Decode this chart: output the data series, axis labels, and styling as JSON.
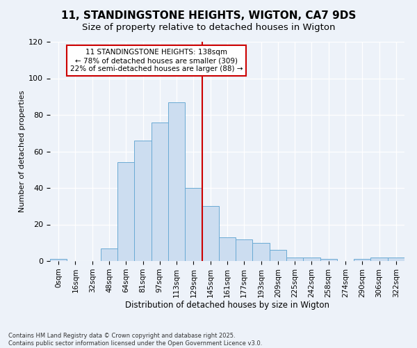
{
  "title": "11, STANDINGSTONE HEIGHTS, WIGTON, CA7 9DS",
  "subtitle": "Size of property relative to detached houses in Wigton",
  "xlabel": "Distribution of detached houses by size in Wigton",
  "ylabel": "Number of detached properties",
  "footer": "Contains HM Land Registry data © Crown copyright and database right 2025.\nContains public sector information licensed under the Open Government Licence v3.0.",
  "bar_labels": [
    "0sqm",
    "16sqm",
    "32sqm",
    "48sqm",
    "64sqm",
    "81sqm",
    "97sqm",
    "113sqm",
    "129sqm",
    "145sqm",
    "161sqm",
    "177sqm",
    "193sqm",
    "209sqm",
    "225sqm",
    "242sqm",
    "258sqm",
    "274sqm",
    "290sqm",
    "306sqm",
    "322sqm"
  ],
  "bar_values": [
    1,
    0,
    0,
    7,
    54,
    66,
    76,
    87,
    40,
    30,
    13,
    12,
    10,
    6,
    2,
    2,
    1,
    0,
    1,
    2,
    2
  ],
  "bar_color": "#ccddf0",
  "bar_edgecolor": "#6aaad4",
  "vline_x": 8.5,
  "vline_color": "#cc0000",
  "annotation_text": "11 STANDINGSTONE HEIGHTS: 138sqm\n← 78% of detached houses are smaller (309)\n22% of semi-detached houses are larger (88) →",
  "ylim": [
    0,
    120
  ],
  "yticks": [
    0,
    20,
    40,
    60,
    80,
    100,
    120
  ],
  "bg_color": "#edf2f9",
  "plot_bg_color": "#edf2f9",
  "title_fontsize": 11,
  "subtitle_fontsize": 9.5,
  "tick_fontsize": 7.5,
  "ylabel_fontsize": 8,
  "xlabel_fontsize": 8.5
}
